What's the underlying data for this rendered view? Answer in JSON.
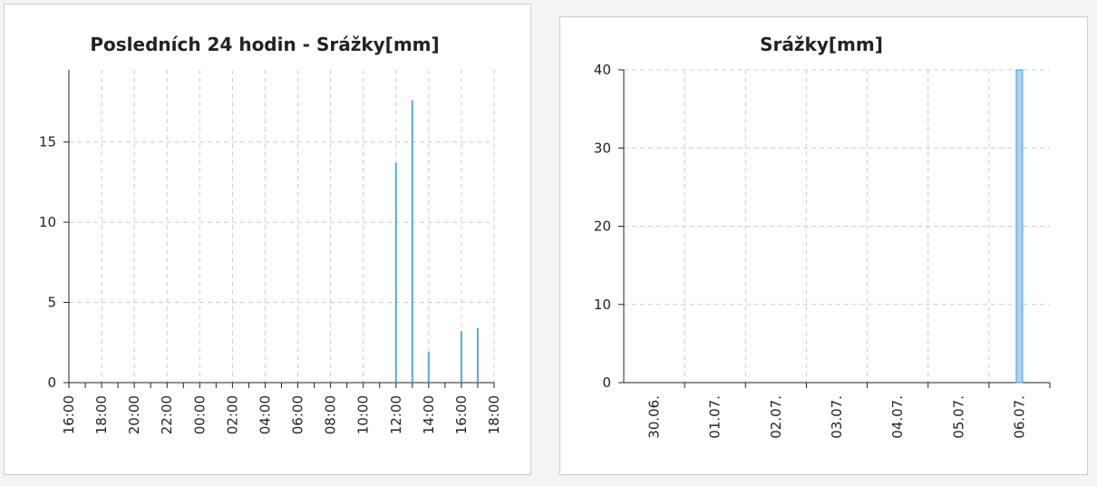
{
  "chart_data": [
    {
      "type": "bar",
      "title": "Posledních 24 hodin - Srážky[mm]",
      "categories": [
        "16:00",
        null,
        "18:00",
        null,
        "20:00",
        null,
        "22:00",
        null,
        "00:00",
        null,
        "02:00",
        null,
        "04:00",
        null,
        "06:00",
        null,
        "08:00",
        null,
        "10:00",
        null,
        "12:00",
        null,
        "14:00",
        null,
        "16:00",
        null,
        "18:00"
      ],
      "values": [
        0,
        0,
        0,
        0,
        0,
        0,
        0,
        0,
        0,
        0,
        0,
        0,
        0,
        0,
        0,
        0,
        0,
        0,
        0,
        0,
        13.7,
        17.6,
        1.9,
        0,
        3.2,
        3.4,
        0
      ],
      "color": "#5aa7dd",
      "ylim": [
        0,
        19.5
      ],
      "yticks": [
        0,
        5,
        10,
        15
      ],
      "grid": true
    },
    {
      "type": "bar",
      "title": "Srážky[mm]",
      "categories": [
        "30.06.",
        "01.07.",
        "02.07.",
        "03.07.",
        "04.07.",
        "05.07.",
        "06.07."
      ],
      "values": [
        0,
        0,
        0,
        0,
        0,
        0,
        40
      ],
      "color": "#a8d4f0",
      "edgecolor": "#4a9ad4",
      "ylim": [
        0,
        40
      ],
      "yticks": [
        0,
        10,
        20,
        30,
        40
      ],
      "grid": true
    }
  ]
}
